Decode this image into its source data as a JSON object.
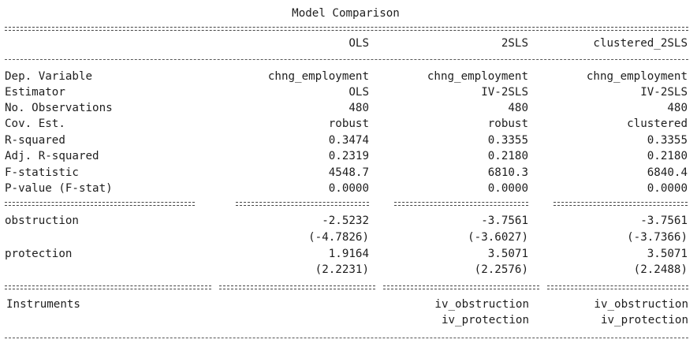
{
  "title": "Model Comparison",
  "columns": [
    "OLS",
    "2SLS",
    "clustered_2SLS"
  ],
  "summary_rows": [
    {
      "label": "Dep. Variable",
      "values": [
        "chng_employment",
        "chng_employment",
        "chng_employment"
      ]
    },
    {
      "label": "Estimator",
      "values": [
        "OLS",
        "IV-2SLS",
        "IV-2SLS"
      ]
    },
    {
      "label": "No. Observations",
      "values": [
        "480",
        "480",
        "480"
      ]
    },
    {
      "label": "Cov. Est.",
      "values": [
        "robust",
        "robust",
        "clustered"
      ]
    },
    {
      "label": "R-squared",
      "values": [
        "0.3474",
        "0.3355",
        "0.3355"
      ]
    },
    {
      "label": "Adj. R-squared",
      "values": [
        "0.2319",
        "0.2180",
        "0.2180"
      ]
    },
    {
      "label": "F-statistic",
      "values": [
        "4548.7",
        "6810.3",
        "6840.4"
      ]
    },
    {
      "label": "P-value (F-stat)",
      "values": [
        "0.0000",
        "0.0000",
        "0.0000"
      ]
    }
  ],
  "coefficients": [
    {
      "label": "obstruction",
      "estimates": [
        "-2.5232",
        "-3.7561",
        "-3.7561"
      ],
      "tstats": [
        "(-4.7826)",
        "(-3.6027)",
        "(-3.7366)"
      ]
    },
    {
      "label": "protection",
      "estimates": [
        "1.9164",
        "3.5071",
        "3.5071"
      ],
      "tstats": [
        "(2.2231)",
        "(2.2576)",
        "(2.2488)"
      ]
    }
  ],
  "instruments": {
    "label": "Instruments",
    "values": [
      "",
      "iv_obstruction\niv_protection",
      "iv_obstruction\niv_protection"
    ]
  }
}
